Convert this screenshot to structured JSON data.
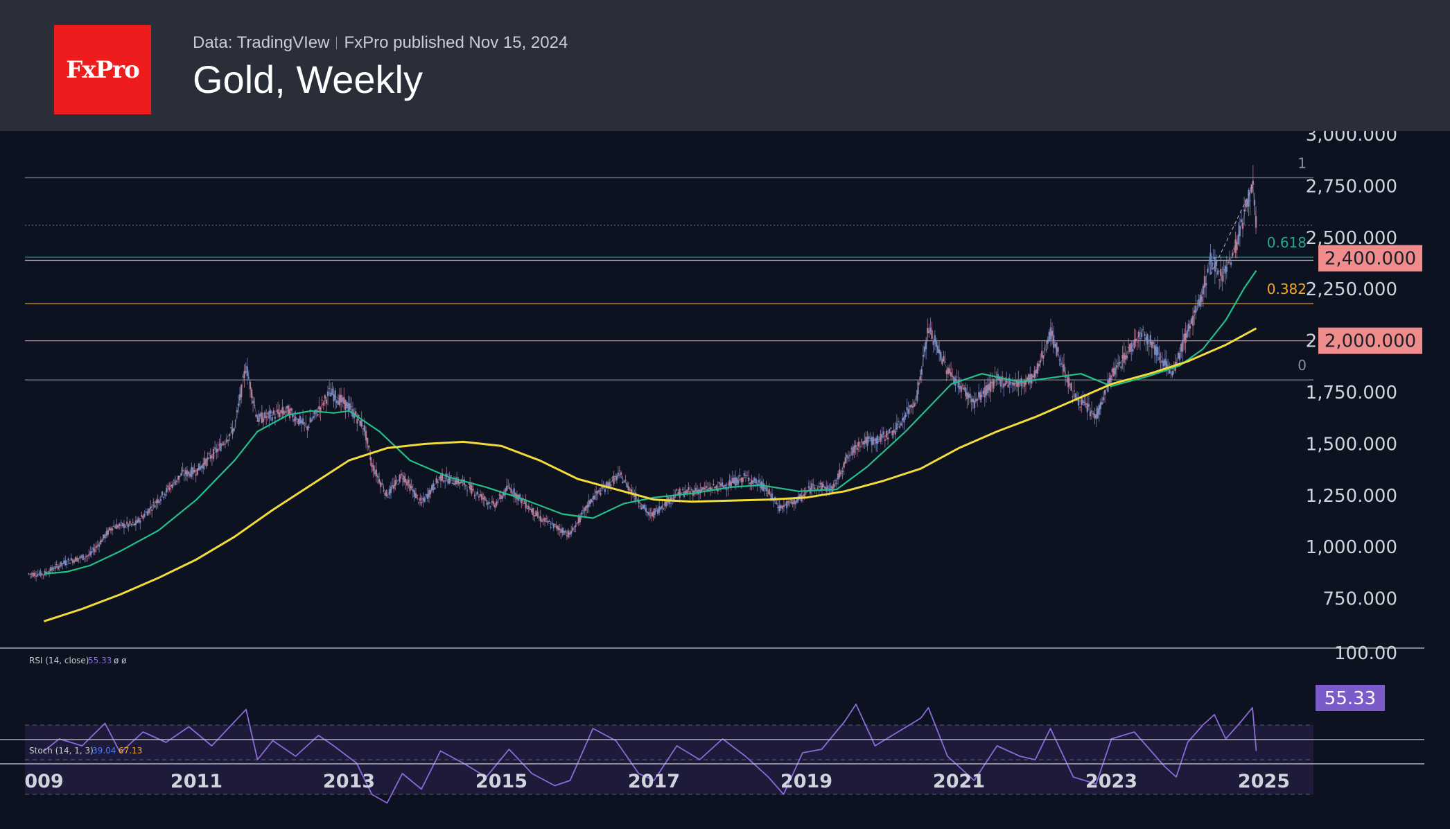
{
  "header": {
    "logo_text": "FxPro",
    "source": "Data: TradingVIew",
    "published": "FxPro published Nov 15, 2024",
    "title": "Gold, Weekly"
  },
  "colors": {
    "background": "#0d1220",
    "header": "#2a2e39",
    "logo": "#ee1c1c",
    "ema_fast": "#22c18a",
    "ema_slow": "#f2dc3a",
    "rsi": "#8b6ad9",
    "fib_618": "#26a69a",
    "fib_382": "#f5a623",
    "highlight": "#f08c8c"
  },
  "chart_data": {
    "type": "line",
    "title": "Gold, Weekly",
    "x_ticks": [
      "009",
      "2011",
      "2013",
      "2015",
      "2017",
      "2019",
      "2021",
      "2023",
      "2025"
    ],
    "y_ticks": [
      "750.000",
      "1,000.000",
      "1,250.000",
      "1,500.000",
      "1,750.000",
      "2,000.000",
      "2,250.000",
      "2,500.000",
      "2,750.000",
      "3,000.000"
    ],
    "ylim": [
      500,
      3000
    ],
    "series": [
      {
        "values": [
          [
            2009.0,
            870
          ],
          [
            2009.3,
            930
          ],
          [
            2009.6,
            960
          ],
          [
            2009.9,
            1100
          ],
          [
            2010.2,
            1110
          ],
          [
            2010.5,
            1230
          ],
          [
            2010.8,
            1350
          ],
          [
            2011.0,
            1370
          ],
          [
            2011.3,
            1480
          ],
          [
            2011.5,
            1580
          ],
          [
            2011.65,
            1880
          ],
          [
            2011.8,
            1620
          ],
          [
            2012.0,
            1640
          ],
          [
            2012.2,
            1660
          ],
          [
            2012.45,
            1580
          ],
          [
            2012.75,
            1750
          ],
          [
            2013.0,
            1680
          ],
          [
            2013.2,
            1580
          ],
          [
            2013.3,
            1400
          ],
          [
            2013.5,
            1250
          ],
          [
            2013.7,
            1350
          ],
          [
            2013.95,
            1210
          ],
          [
            2014.2,
            1340
          ],
          [
            2014.5,
            1310
          ],
          [
            2014.9,
            1200
          ],
          [
            2015.1,
            1290
          ],
          [
            2015.5,
            1140
          ],
          [
            2015.9,
            1060
          ],
          [
            2016.2,
            1240
          ],
          [
            2016.55,
            1350
          ],
          [
            2016.95,
            1150
          ],
          [
            2017.3,
            1260
          ],
          [
            2017.7,
            1280
          ],
          [
            2017.95,
            1300
          ],
          [
            2018.2,
            1340
          ],
          [
            2018.45,
            1290
          ],
          [
            2018.65,
            1190
          ],
          [
            2018.9,
            1230
          ],
          [
            2019.1,
            1300
          ],
          [
            2019.35,
            1280
          ],
          [
            2019.5,
            1410
          ],
          [
            2019.7,
            1510
          ],
          [
            2019.95,
            1520
          ],
          [
            2020.2,
            1580
          ],
          [
            2020.45,
            1730
          ],
          [
            2020.6,
            2060
          ],
          [
            2020.85,
            1860
          ],
          [
            2021.2,
            1700
          ],
          [
            2021.5,
            1810
          ],
          [
            2021.8,
            1790
          ],
          [
            2022.0,
            1830
          ],
          [
            2022.2,
            2040
          ],
          [
            2022.5,
            1740
          ],
          [
            2022.8,
            1630
          ],
          [
            2023.0,
            1830
          ],
          [
            2023.3,
            1990
          ],
          [
            2023.4,
            2050
          ],
          [
            2023.7,
            1900
          ],
          [
            2023.8,
            1830
          ],
          [
            2024.0,
            2050
          ],
          [
            2024.15,
            2170
          ],
          [
            2024.3,
            2390
          ],
          [
            2024.45,
            2320
          ],
          [
            2024.6,
            2420
          ],
          [
            2024.75,
            2620
          ],
          [
            2024.85,
            2770
          ],
          [
            2024.9,
            2565
          ]
        ]
      },
      {
        "values": [
          [
            2009.0,
            870
          ],
          [
            2009.3,
            880
          ],
          [
            2009.6,
            910
          ],
          [
            2010.0,
            980
          ],
          [
            2010.5,
            1080
          ],
          [
            2011.0,
            1230
          ],
          [
            2011.5,
            1420
          ],
          [
            2011.8,
            1560
          ],
          [
            2012.2,
            1640
          ],
          [
            2012.5,
            1660
          ],
          [
            2012.8,
            1650
          ],
          [
            2013.0,
            1660
          ],
          [
            2013.4,
            1560
          ],
          [
            2013.8,
            1420
          ],
          [
            2014.3,
            1340
          ],
          [
            2014.8,
            1290
          ],
          [
            2015.3,
            1230
          ],
          [
            2015.8,
            1160
          ],
          [
            2016.2,
            1140
          ],
          [
            2016.6,
            1210
          ],
          [
            2017.0,
            1240
          ],
          [
            2017.5,
            1260
          ],
          [
            2018.0,
            1290
          ],
          [
            2018.4,
            1300
          ],
          [
            2018.9,
            1270
          ],
          [
            2019.4,
            1280
          ],
          [
            2019.8,
            1390
          ],
          [
            2020.3,
            1560
          ],
          [
            2020.9,
            1790
          ],
          [
            2021.3,
            1840
          ],
          [
            2021.8,
            1800
          ],
          [
            2022.2,
            1820
          ],
          [
            2022.6,
            1840
          ],
          [
            2023.0,
            1780
          ],
          [
            2023.5,
            1830
          ],
          [
            2023.9,
            1880
          ],
          [
            2024.2,
            1960
          ],
          [
            2024.5,
            2100
          ],
          [
            2024.75,
            2260
          ],
          [
            2024.9,
            2340
          ]
        ]
      },
      {
        "values": [
          [
            2009.0,
            640
          ],
          [
            2009.5,
            700
          ],
          [
            2010.0,
            770
          ],
          [
            2010.5,
            850
          ],
          [
            2011.0,
            940
          ],
          [
            2011.5,
            1050
          ],
          [
            2012.0,
            1180
          ],
          [
            2012.5,
            1300
          ],
          [
            2013.0,
            1420
          ],
          [
            2013.5,
            1480
          ],
          [
            2014.0,
            1500
          ],
          [
            2014.5,
            1510
          ],
          [
            2015.0,
            1490
          ],
          [
            2015.5,
            1420
          ],
          [
            2016.0,
            1330
          ],
          [
            2016.5,
            1280
          ],
          [
            2017.0,
            1230
          ],
          [
            2017.5,
            1220
          ],
          [
            2018.0,
            1225
          ],
          [
            2018.5,
            1230
          ],
          [
            2019.0,
            1240
          ],
          [
            2019.5,
            1270
          ],
          [
            2020.0,
            1320
          ],
          [
            2020.5,
            1380
          ],
          [
            2021.0,
            1480
          ],
          [
            2021.5,
            1560
          ],
          [
            2022.0,
            1630
          ],
          [
            2022.5,
            1710
          ],
          [
            2023.0,
            1790
          ],
          [
            2023.5,
            1840
          ],
          [
            2024.0,
            1900
          ],
          [
            2024.5,
            1980
          ],
          [
            2024.9,
            2060
          ]
        ]
      }
    ],
    "levels": [
      {
        "label": "1",
        "value": 2790
      },
      {
        "label": "",
        "value": 2560
      },
      {
        "label": "0.618",
        "value": 2405
      },
      {
        "label": "",
        "value": 2390
      },
      {
        "label": "0.382",
        "value": 2180
      },
      {
        "label": "",
        "value": 2000
      },
      {
        "label": "0",
        "value": 1810
      }
    ],
    "price_badges": [
      "2,400.000",
      "2,000.000"
    ],
    "rsi": {
      "label": "RSI (14, close)",
      "value": "55.33",
      "extra": "ø ø",
      "top_tick": "100.00",
      "overbought": 70,
      "oversold": 30,
      "values": [
        [
          2009.0,
          55
        ],
        [
          2009.2,
          62
        ],
        [
          2009.5,
          58
        ],
        [
          2009.8,
          71
        ],
        [
          2010.0,
          54
        ],
        [
          2010.3,
          66
        ],
        [
          2010.6,
          60
        ],
        [
          2010.9,
          69
        ],
        [
          2011.2,
          58
        ],
        [
          2011.5,
          72
        ],
        [
          2011.65,
          79
        ],
        [
          2011.8,
          50
        ],
        [
          2012.0,
          61
        ],
        [
          2012.3,
          52
        ],
        [
          2012.6,
          64
        ],
        [
          2012.8,
          58
        ],
        [
          2013.1,
          48
        ],
        [
          2013.3,
          30
        ],
        [
          2013.5,
          25
        ],
        [
          2013.7,
          42
        ],
        [
          2013.95,
          33
        ],
        [
          2014.2,
          55
        ],
        [
          2014.5,
          48
        ],
        [
          2014.8,
          40
        ],
        [
          2015.1,
          56
        ],
        [
          2015.4,
          42
        ],
        [
          2015.7,
          35
        ],
        [
          2015.9,
          38
        ],
        [
          2016.2,
          68
        ],
        [
          2016.5,
          61
        ],
        [
          2016.8,
          42
        ],
        [
          2017.0,
          38
        ],
        [
          2017.3,
          58
        ],
        [
          2017.6,
          50
        ],
        [
          2017.9,
          62
        ],
        [
          2018.2,
          52
        ],
        [
          2018.5,
          40
        ],
        [
          2018.7,
          30
        ],
        [
          2018.95,
          54
        ],
        [
          2019.2,
          56
        ],
        [
          2019.5,
          72
        ],
        [
          2019.65,
          82
        ],
        [
          2019.9,
          58
        ],
        [
          2020.2,
          66
        ],
        [
          2020.5,
          74
        ],
        [
          2020.6,
          80
        ],
        [
          2020.85,
          52
        ],
        [
          2021.2,
          38
        ],
        [
          2021.5,
          58
        ],
        [
          2021.8,
          52
        ],
        [
          2022.0,
          50
        ],
        [
          2022.2,
          68
        ],
        [
          2022.5,
          40
        ],
        [
          2022.8,
          36
        ],
        [
          2023.0,
          62
        ],
        [
          2023.3,
          66
        ],
        [
          2023.5,
          56
        ],
        [
          2023.7,
          46
        ],
        [
          2023.85,
          40
        ],
        [
          2024.0,
          60
        ],
        [
          2024.2,
          70
        ],
        [
          2024.35,
          76
        ],
        [
          2024.5,
          62
        ],
        [
          2024.7,
          72
        ],
        [
          2024.85,
          80
        ],
        [
          2024.9,
          55
        ]
      ]
    },
    "stoch": {
      "label": "Stoch (14, 1, 3)",
      "k": "39.04",
      "d": "67.13"
    }
  }
}
